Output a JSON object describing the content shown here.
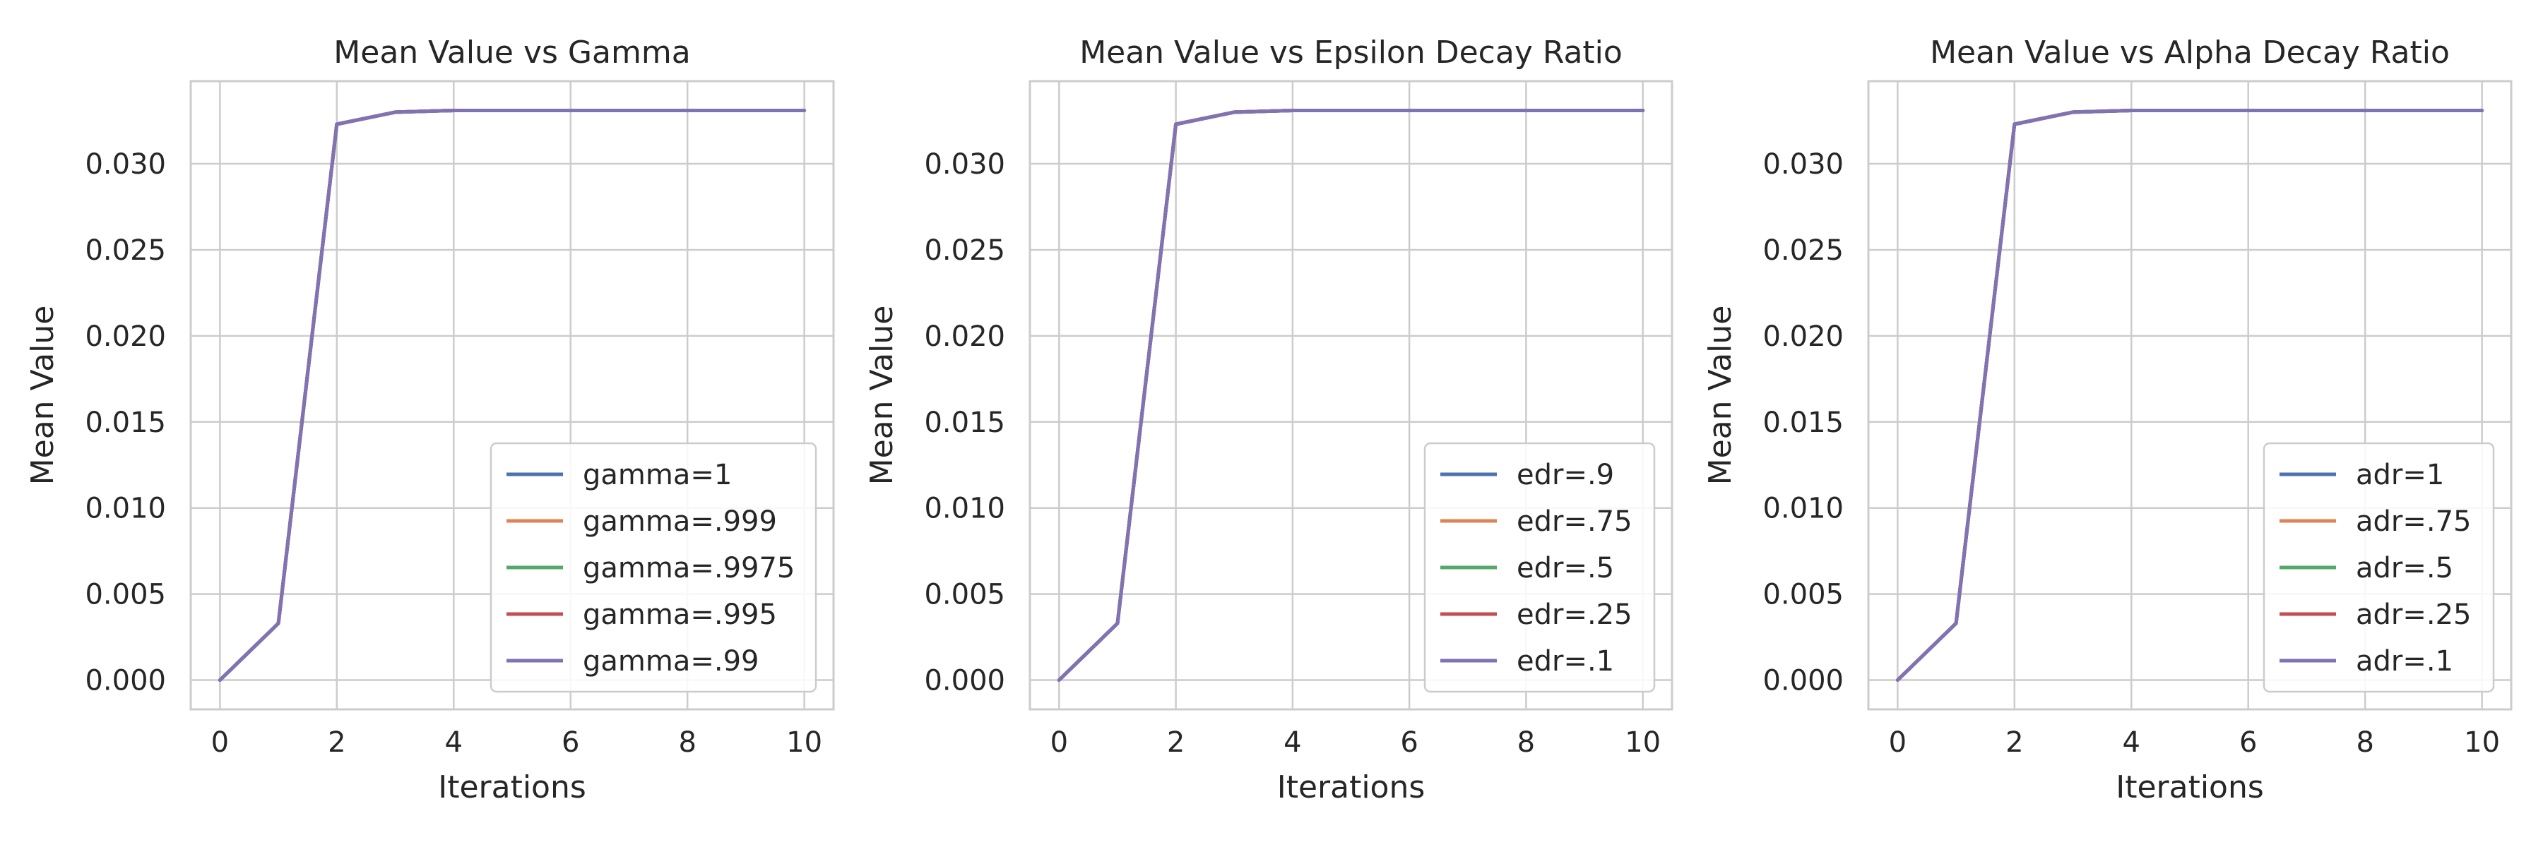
{
  "chart_data": [
    {
      "type": "line",
      "title": "Mean Value vs Gamma",
      "xlabel": "Iterations",
      "ylabel": "Mean Value",
      "xlim": [
        -0.5,
        10.5
      ],
      "ylim": [
        -0.0017,
        0.0348
      ],
      "xticks": [
        0,
        2,
        4,
        6,
        8,
        10
      ],
      "xtick_labels": [
        "0",
        "2",
        "4",
        "6",
        "8",
        "10"
      ],
      "yticks": [
        0,
        0.005,
        0.01,
        0.015,
        0.02,
        0.025,
        0.03
      ],
      "ytick_labels": [
        "0.000",
        "0.005",
        "0.010",
        "0.015",
        "0.020",
        "0.025",
        "0.030"
      ],
      "grid": true,
      "legend_position": "lower right",
      "x": [
        0,
        1,
        2,
        3,
        4,
        5,
        6,
        7,
        8,
        9,
        10
      ],
      "series": [
        {
          "name": "gamma=1",
          "color": "#4c72b0",
          "values": [
            0,
            0.0033,
            0.0323,
            0.033,
            0.0331,
            0.0331,
            0.0331,
            0.0331,
            0.0331,
            0.0331,
            0.0331
          ]
        },
        {
          "name": "gamma=.999",
          "color": "#dd8452",
          "values": [
            0,
            0.0033,
            0.0323,
            0.033,
            0.0331,
            0.0331,
            0.0331,
            0.0331,
            0.0331,
            0.0331,
            0.0331
          ]
        },
        {
          "name": "gamma=.9975",
          "color": "#55a868",
          "values": [
            0,
            0.0033,
            0.0323,
            0.033,
            0.0331,
            0.0331,
            0.0331,
            0.0331,
            0.0331,
            0.0331,
            0.0331
          ]
        },
        {
          "name": "gamma=.995",
          "color": "#c44e52",
          "values": [
            0,
            0.0033,
            0.0323,
            0.033,
            0.0331,
            0.0331,
            0.0331,
            0.0331,
            0.0331,
            0.0331,
            0.0331
          ]
        },
        {
          "name": "gamma=.99",
          "color": "#8172b3",
          "values": [
            0,
            0.0033,
            0.0323,
            0.033,
            0.0331,
            0.0331,
            0.0331,
            0.0331,
            0.0331,
            0.0331,
            0.0331
          ]
        }
      ]
    },
    {
      "type": "line",
      "title": "Mean Value vs Epsilon Decay Ratio",
      "xlabel": "Iterations",
      "ylabel": "Mean Value",
      "xlim": [
        -0.5,
        10.5
      ],
      "ylim": [
        -0.0017,
        0.0348
      ],
      "xticks": [
        0,
        2,
        4,
        6,
        8,
        10
      ],
      "xtick_labels": [
        "0",
        "2",
        "4",
        "6",
        "8",
        "10"
      ],
      "yticks": [
        0,
        0.005,
        0.01,
        0.015,
        0.02,
        0.025,
        0.03
      ],
      "ytick_labels": [
        "0.000",
        "0.005",
        "0.010",
        "0.015",
        "0.020",
        "0.025",
        "0.030"
      ],
      "grid": true,
      "legend_position": "lower right",
      "x": [
        0,
        1,
        2,
        3,
        4,
        5,
        6,
        7,
        8,
        9,
        10
      ],
      "series": [
        {
          "name": "edr=.9",
          "color": "#4c72b0",
          "values": [
            0,
            0.0033,
            0.0323,
            0.033,
            0.0331,
            0.0331,
            0.0331,
            0.0331,
            0.0331,
            0.0331,
            0.0331
          ]
        },
        {
          "name": "edr=.75",
          "color": "#dd8452",
          "values": [
            0,
            0.0033,
            0.0323,
            0.033,
            0.0331,
            0.0331,
            0.0331,
            0.0331,
            0.0331,
            0.0331,
            0.0331
          ]
        },
        {
          "name": "edr=.5",
          "color": "#55a868",
          "values": [
            0,
            0.0033,
            0.0323,
            0.033,
            0.0331,
            0.0331,
            0.0331,
            0.0331,
            0.0331,
            0.0331,
            0.0331
          ]
        },
        {
          "name": "edr=.25",
          "color": "#c44e52",
          "values": [
            0,
            0.0033,
            0.0323,
            0.033,
            0.0331,
            0.0331,
            0.0331,
            0.0331,
            0.0331,
            0.0331,
            0.0331
          ]
        },
        {
          "name": "edr=.1",
          "color": "#8172b3",
          "values": [
            0,
            0.0033,
            0.0323,
            0.033,
            0.0331,
            0.0331,
            0.0331,
            0.0331,
            0.0331,
            0.0331,
            0.0331
          ]
        }
      ]
    },
    {
      "type": "line",
      "title": "Mean Value vs Alpha Decay Ratio",
      "xlabel": "Iterations",
      "ylabel": "Mean Value",
      "xlim": [
        -0.5,
        10.5
      ],
      "ylim": [
        -0.0017,
        0.0348
      ],
      "xticks": [
        0,
        2,
        4,
        6,
        8,
        10
      ],
      "xtick_labels": [
        "0",
        "2",
        "4",
        "6",
        "8",
        "10"
      ],
      "yticks": [
        0,
        0.005,
        0.01,
        0.015,
        0.02,
        0.025,
        0.03
      ],
      "ytick_labels": [
        "0.000",
        "0.005",
        "0.010",
        "0.015",
        "0.020",
        "0.025",
        "0.030"
      ],
      "grid": true,
      "legend_position": "lower right",
      "x": [
        0,
        1,
        2,
        3,
        4,
        5,
        6,
        7,
        8,
        9,
        10
      ],
      "series": [
        {
          "name": "adr=1",
          "color": "#4c72b0",
          "values": [
            0,
            0.0033,
            0.0323,
            0.033,
            0.0331,
            0.0331,
            0.0331,
            0.0331,
            0.0331,
            0.0331,
            0.0331
          ]
        },
        {
          "name": "adr=.75",
          "color": "#dd8452",
          "values": [
            0,
            0.0033,
            0.0323,
            0.033,
            0.0331,
            0.0331,
            0.0331,
            0.0331,
            0.0331,
            0.0331,
            0.0331
          ]
        },
        {
          "name": "adr=.5",
          "color": "#55a868",
          "values": [
            0,
            0.0033,
            0.0323,
            0.033,
            0.0331,
            0.0331,
            0.0331,
            0.0331,
            0.0331,
            0.0331,
            0.0331
          ]
        },
        {
          "name": "adr=.25",
          "color": "#c44e52",
          "values": [
            0,
            0.0033,
            0.0323,
            0.033,
            0.0331,
            0.0331,
            0.0331,
            0.0331,
            0.0331,
            0.0331,
            0.0331
          ]
        },
        {
          "name": "adr=.1",
          "color": "#8172b3",
          "values": [
            0,
            0.0033,
            0.0323,
            0.033,
            0.0331,
            0.0331,
            0.0331,
            0.0331,
            0.0331,
            0.0331,
            0.0331
          ]
        }
      ]
    }
  ]
}
